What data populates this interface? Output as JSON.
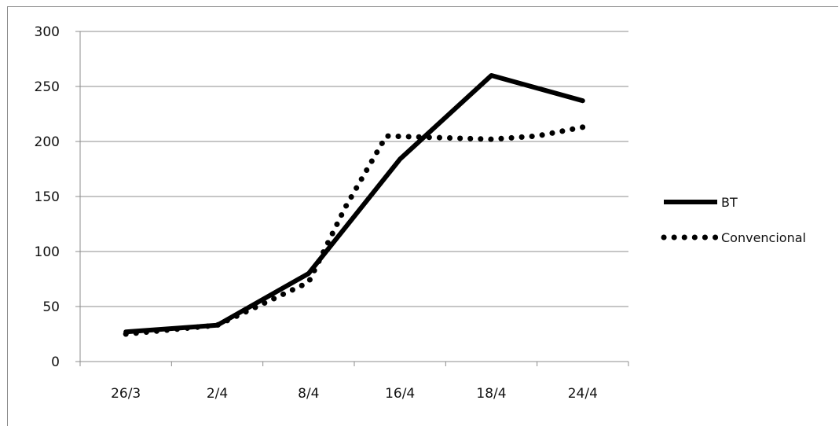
{
  "chart_data": {
    "type": "line",
    "title": "",
    "xlabel": "",
    "ylabel": "",
    "categories": [
      "26/3",
      "2/4",
      "8/4",
      "16/4",
      "18/4",
      "24/4"
    ],
    "ylim": [
      0,
      300
    ],
    "yticks": [
      0,
      50,
      100,
      150,
      200,
      250,
      300
    ],
    "grid": true,
    "legend_position": "right",
    "series": [
      {
        "name": "BT",
        "style": "solid",
        "color": "#000000",
        "points": [
          {
            "x": 0,
            "y": 27
          },
          {
            "x": 1,
            "y": 33
          },
          {
            "x": 2,
            "y": 80
          },
          {
            "x": 3,
            "y": 184
          },
          {
            "x": 4,
            "y": 260
          },
          {
            "x": 5,
            "y": 237
          }
        ]
      },
      {
        "name": "Convencional",
        "style": "dotted",
        "color": "#000000",
        "points": [
          {
            "x": 0,
            "y": 25
          },
          {
            "x": 1,
            "y": 33
          },
          {
            "x": 2,
            "y": 72
          },
          {
            "x": 2.4,
            "y": 140
          },
          {
            "x": 2.85,
            "y": 205
          },
          {
            "x": 4,
            "y": 202
          },
          {
            "x": 4.5,
            "y": 205
          },
          {
            "x": 5,
            "y": 213
          }
        ]
      }
    ]
  }
}
